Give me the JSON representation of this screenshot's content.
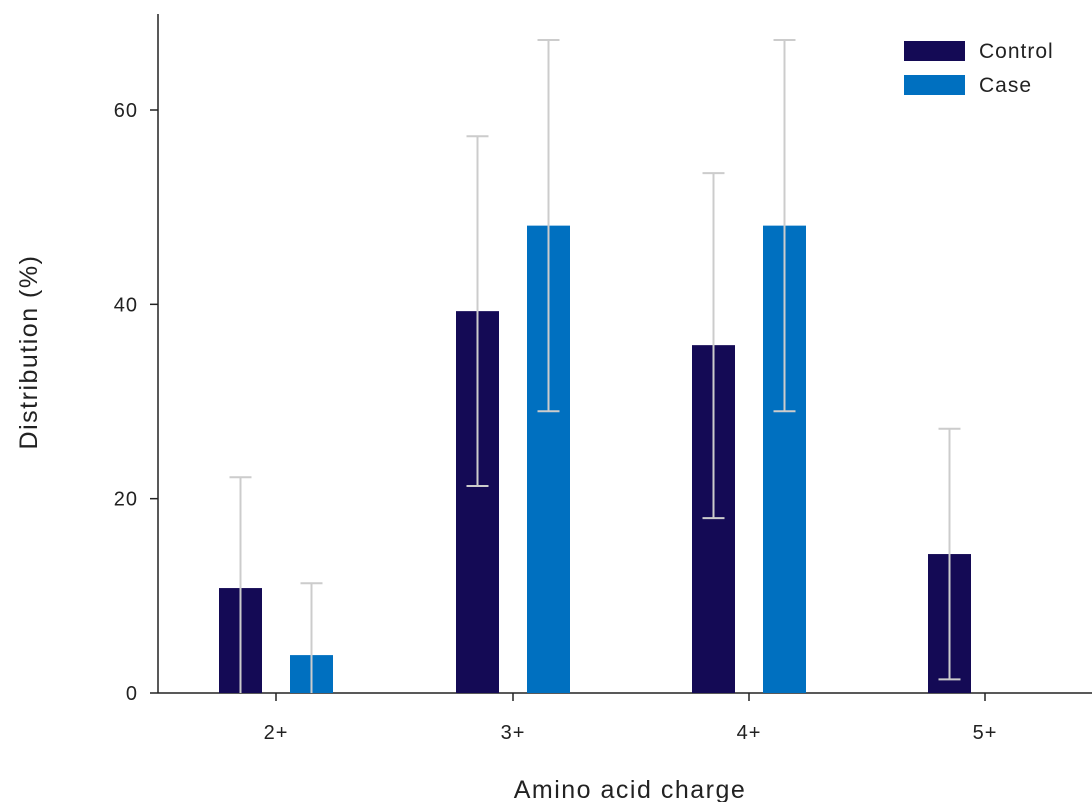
{
  "chart_data": {
    "type": "bar",
    "categories": [
      "2+",
      "3+",
      "4+",
      "5+"
    ],
    "series": [
      {
        "name": "Control",
        "color": "#140a55",
        "values": [
          10.8,
          39.3,
          35.8,
          14.3
        ],
        "err_low": [
          0.0,
          21.3,
          18.0,
          1.4
        ],
        "err_high": [
          22.2,
          57.3,
          53.5,
          27.2
        ]
      },
      {
        "name": "Case",
        "color": "#0070c0",
        "values": [
          3.9,
          48.1,
          48.1,
          0
        ],
        "err_low": [
          0.0,
          29.0,
          29.0,
          null
        ],
        "err_high": [
          11.3,
          67.2,
          67.2,
          null
        ]
      }
    ],
    "xlabel": "Amino acid charge",
    "ylabel": "Distribution (%)",
    "ylim": [
      0,
      70
    ],
    "yticks": [
      0,
      20,
      40,
      60
    ],
    "error_bar_color": "#cccccc",
    "grid": false,
    "legend_position": "top-right"
  }
}
